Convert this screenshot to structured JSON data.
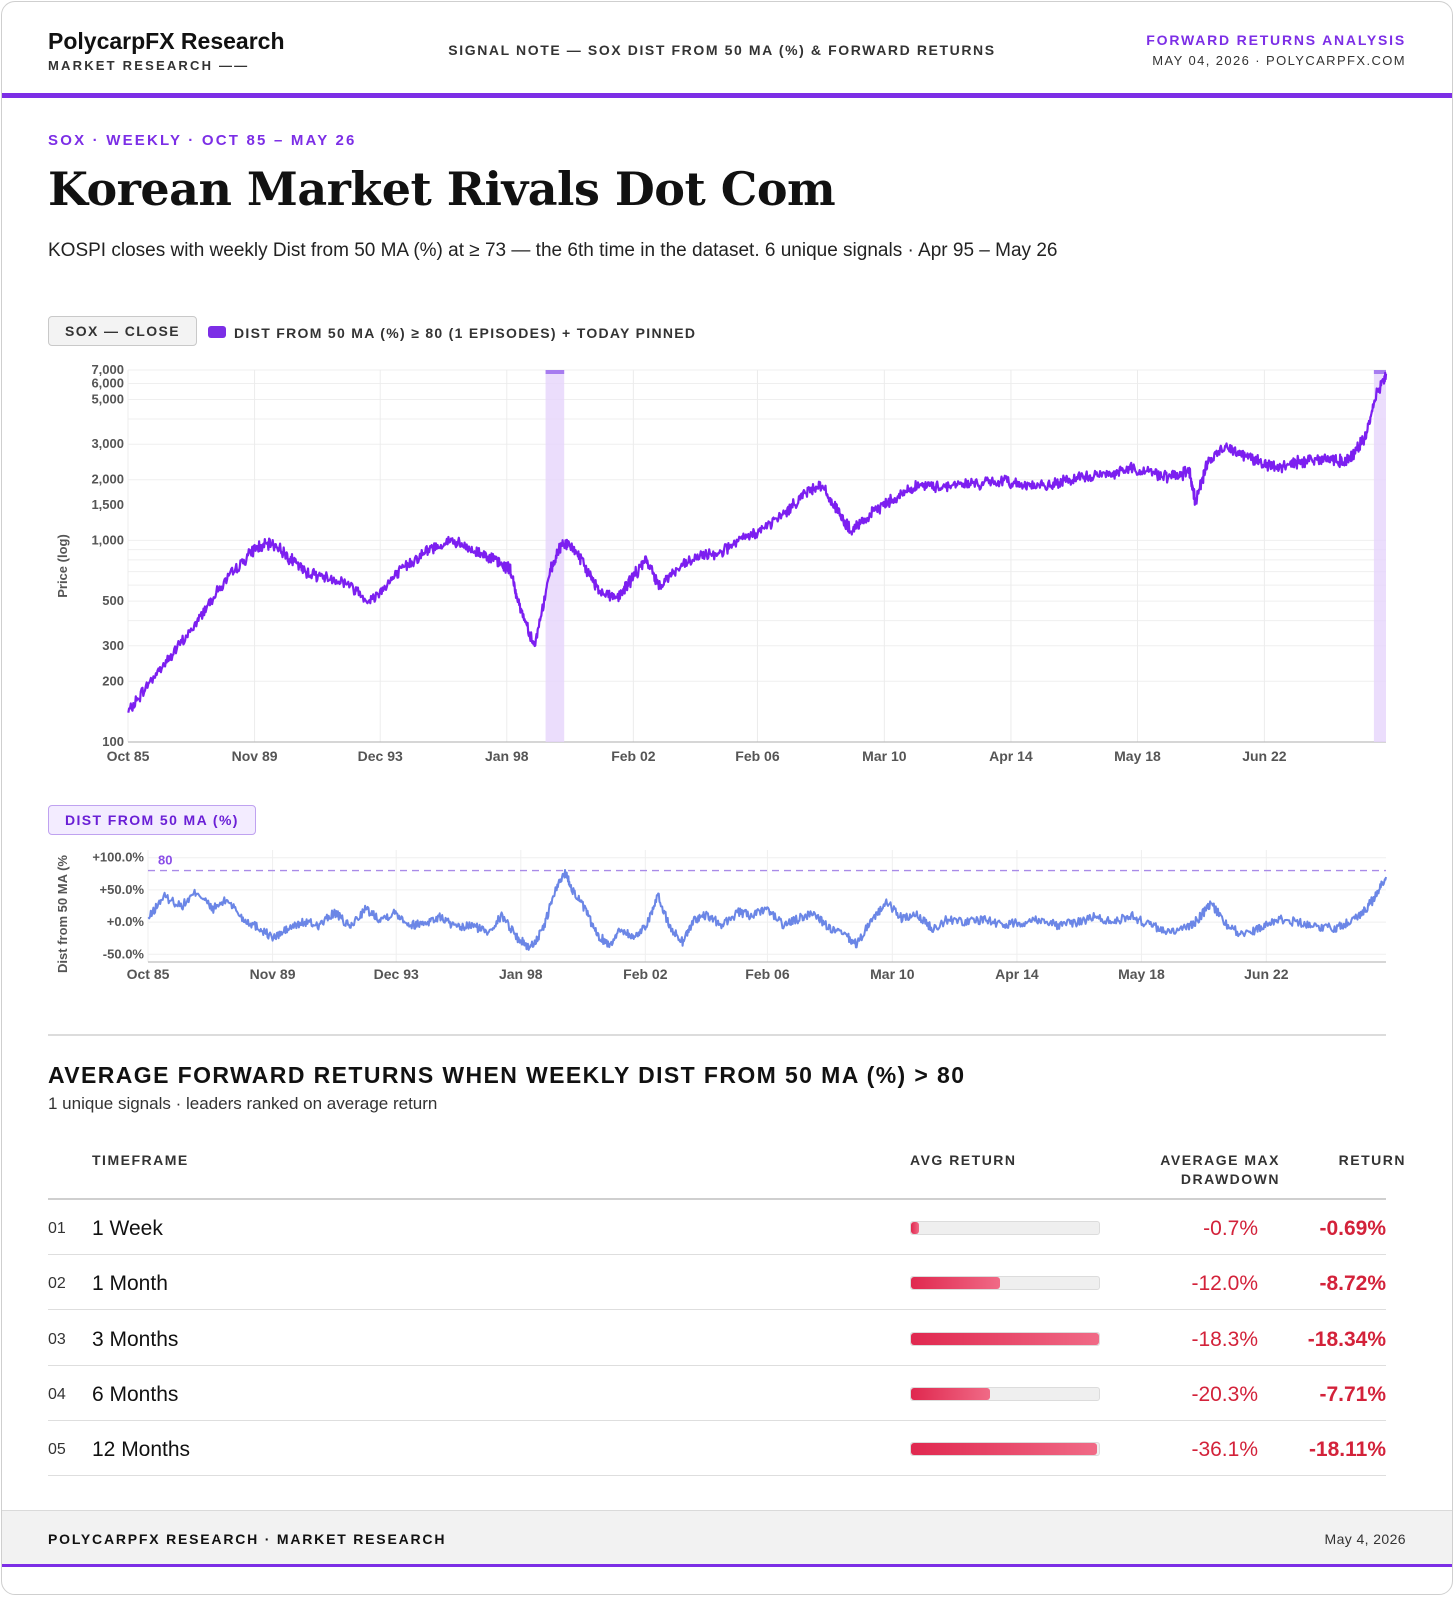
{
  "header": {
    "brand": "PolycarpFX Research",
    "brand_sub": "MARKET RESEARCH ——",
    "center": "SIGNAL NOTE — SOX DIST FROM 50 MA (%) & FORWARD RETURNS",
    "right_title": "FORWARD RETURNS ANALYSIS",
    "right_sub": "MAY 04, 2026 · POLYCARPFX.COM"
  },
  "kicker": "SOX · WEEKLY · OCT 85 – MAY 26",
  "title": "Korean Market Rivals Dot Com",
  "subtitle": "KOSPI closes with weekly Dist from 50 MA (%) at ≥ 73 — the 6th time in the dataset. 6 unique signals · Apr 95 – May 26",
  "colors": {
    "accent": "#7c2ee6",
    "price_line": "#7c1ff0",
    "dist_line": "#6b86e6",
    "negative": "#d3223a"
  },
  "price_chart": {
    "chip": "SOX — CLOSE",
    "legend": "DIST FROM 50 MA (%) ≥ 80 (1 EPISODES) + TODAY PINNED",
    "ylabel": "Price (log)"
  },
  "dist_chart": {
    "chip": "DIST FROM 50 MA (%)",
    "ylabel": "Dist from 50 MA (%",
    "threshold_label": "80"
  },
  "chart_data": [
    {
      "type": "line",
      "title": "SOX — CLOSE",
      "ylabel": "Price (log)",
      "yscale": "log",
      "ylim": [
        100,
        7000
      ],
      "xlim": [
        1985.79,
        2026.34
      ],
      "yticks": [
        100,
        200,
        300,
        500,
        1000,
        1500,
        2000,
        3000,
        5000,
        6000,
        7000
      ],
      "ytick_labels": [
        "100",
        "200",
        "300",
        "500",
        "1,000",
        "1,500",
        "2,000",
        "3,000",
        "5,000",
        "6,000",
        "7,000"
      ],
      "xticks": [
        1985.79,
        1989.87,
        1993.92,
        1998.0,
        2002.08,
        2006.08,
        2010.17,
        2014.25,
        2018.33,
        2022.42
      ],
      "xtick_labels": [
        "Oct 85",
        "Nov 89",
        "Dec 93",
        "Jan 98",
        "Feb 02",
        "Feb 06",
        "Mar 10",
        "Apr 14",
        "May 18",
        "Jun 22"
      ],
      "highlight_ranges": [
        [
          1999.25,
          1999.85
        ],
        [
          2025.95,
          2026.34
        ]
      ],
      "series": [
        {
          "name": "SOX — CLOSE",
          "x": [
            1985.8,
            1986.5,
            1987.2,
            1987.9,
            1988.5,
            1989.2,
            1989.9,
            1990.5,
            1991.0,
            1991.5,
            1992.1,
            1992.8,
            1993.6,
            1994.2,
            1994.8,
            1995.5,
            1996.2,
            1996.8,
            1997.4,
            1997.8,
            1998.1,
            1998.4,
            1998.9,
            1999.4,
            1999.8,
            2000.2,
            2000.6,
            2001.0,
            2001.6,
            2002.0,
            2002.5,
            2002.9,
            2003.5,
            2004.2,
            2004.9,
            2005.6,
            2006.3,
            2007.0,
            2007.6,
            2008.1,
            2008.6,
            2009.1,
            2009.6,
            2010.1,
            2010.6,
            2011.2,
            2011.9,
            2012.6,
            2013.3,
            2014.0,
            2014.7,
            2015.4,
            2016.1,
            2016.8,
            2017.5,
            2018.1,
            2018.8,
            2019.4,
            2020.0,
            2020.2,
            2020.6,
            2021.2,
            2021.8,
            2022.3,
            2022.8,
            2023.4,
            2024.0,
            2024.6,
            2025.0,
            2025.3,
            2025.7,
            2026.0,
            2026.34
          ],
          "y": [
            140,
            200,
            270,
            370,
            520,
            700,
            920,
            960,
            820,
            700,
            660,
            620,
            500,
            620,
            760,
            900,
            1000,
            900,
            840,
            760,
            720,
            480,
            300,
            700,
            980,
            900,
            700,
            560,
            520,
            640,
            800,
            600,
            720,
            830,
            880,
            1010,
            1150,
            1380,
            1720,
            1900,
            1450,
            1100,
            1280,
            1500,
            1650,
            1870,
            1850,
            1900,
            1920,
            1960,
            1900,
            1850,
            1980,
            2080,
            2150,
            2280,
            2180,
            2050,
            2200,
            1550,
            2450,
            2950,
            2650,
            2450,
            2280,
            2420,
            2550,
            2520,
            2450,
            2700,
            3300,
            5200,
            6700
          ]
        }
      ]
    },
    {
      "type": "line",
      "title": "DIST FROM 50 MA (%)",
      "ylabel": "Dist from 50 MA (%",
      "ylim": [
        -62,
        112
      ],
      "xlim": [
        1985.79,
        2026.34
      ],
      "yticks": [
        100,
        50,
        0,
        -50
      ],
      "ytick_labels": [
        "+100.0%",
        "+50.0%",
        "+0.0%",
        "-50.0%"
      ],
      "threshold": 80,
      "xticks": [
        1985.79,
        1989.87,
        1993.92,
        1998.0,
        2002.08,
        2006.08,
        2010.17,
        2014.25,
        2018.33,
        2022.42
      ],
      "xtick_labels": [
        "Oct 85",
        "Nov 89",
        "Dec 93",
        "Jan 98",
        "Feb 02",
        "Feb 06",
        "Mar 10",
        "Apr 14",
        "May 18",
        "Jun 22"
      ],
      "series": [
        {
          "name": "DIST FROM 50 MA (%)",
          "x": [
            1985.8,
            1986.3,
            1986.9,
            1987.4,
            1987.9,
            1988.4,
            1988.9,
            1989.4,
            1989.9,
            1990.4,
            1990.9,
            1991.4,
            1991.9,
            1992.4,
            1992.9,
            1993.4,
            1993.9,
            1994.4,
            1994.9,
            1995.4,
            1995.9,
            1996.4,
            1996.9,
            1997.4,
            1997.9,
            1998.3,
            1998.7,
            1999.1,
            1999.45,
            1999.7,
            2000.1,
            2000.5,
            2000.9,
            2001.3,
            2001.7,
            2002.1,
            2002.5,
            2002.9,
            2003.3,
            2003.7,
            2004.1,
            2004.6,
            2005.1,
            2005.6,
            2006.1,
            2006.6,
            2007.1,
            2007.6,
            2008.1,
            2008.6,
            2009.0,
            2009.5,
            2010.0,
            2010.5,
            2011.0,
            2011.5,
            2012.0,
            2012.6,
            2013.2,
            2013.8,
            2014.4,
            2015.0,
            2015.6,
            2016.2,
            2016.8,
            2017.4,
            2018.0,
            2018.6,
            2019.2,
            2019.8,
            2020.2,
            2020.6,
            2021.2,
            2021.8,
            2022.3,
            2022.8,
            2023.4,
            2024.0,
            2024.6,
            2025.1,
            2025.6,
            2026.0,
            2026.34
          ],
          "y": [
            5,
            40,
            25,
            48,
            20,
            35,
            5,
            -8,
            -25,
            -10,
            0,
            -5,
            15,
            -8,
            20,
            5,
            15,
            -5,
            0,
            8,
            -10,
            -5,
            -15,
            10,
            -25,
            -40,
            -15,
            45,
            78,
            50,
            20,
            -20,
            -35,
            -10,
            -25,
            -5,
            40,
            -10,
            -30,
            5,
            10,
            -5,
            15,
            10,
            20,
            -5,
            5,
            15,
            -10,
            -20,
            -35,
            5,
            30,
            5,
            10,
            -10,
            5,
            0,
            5,
            -5,
            0,
            5,
            -5,
            0,
            8,
            0,
            10,
            -5,
            -15,
            -10,
            5,
            30,
            -10,
            -20,
            -5,
            5,
            0,
            -5,
            -10,
            0,
            15,
            40,
            70
          ]
        }
      ]
    }
  ],
  "returns": {
    "title": "AVERAGE FORWARD RETURNS WHEN WEEKLY DIST FROM 50 MA (%) > 80",
    "subtitle": "1 unique signals · leaders ranked on average return",
    "col_timeframe": "TIMEFRAME",
    "col_avg": "AVG RETURN",
    "col_dd_1": "AVERAGE MAX",
    "col_dd_2": "DRAWDOWN",
    "col_ret": "RETURN",
    "rows": [
      {
        "idx": "01",
        "timeframe": "1 Week",
        "bar_fraction": 0.04,
        "drawdown": "-0.7%",
        "return": "-0.69%"
      },
      {
        "idx": "02",
        "timeframe": "1 Month",
        "bar_fraction": 0.475,
        "drawdown": "-12.0%",
        "return": "-8.72%"
      },
      {
        "idx": "03",
        "timeframe": "3 Months",
        "bar_fraction": 1.0,
        "drawdown": "-18.3%",
        "return": "-18.34%"
      },
      {
        "idx": "04",
        "timeframe": "6 Months",
        "bar_fraction": 0.42,
        "drawdown": "-20.3%",
        "return": "-7.71%"
      },
      {
        "idx": "05",
        "timeframe": "12 Months",
        "bar_fraction": 0.99,
        "drawdown": "-36.1%",
        "return": "-18.11%"
      }
    ]
  },
  "footer": {
    "left": "POLYCARPFX RESEARCH · MARKET RESEARCH",
    "right": "May 4, 2026"
  }
}
